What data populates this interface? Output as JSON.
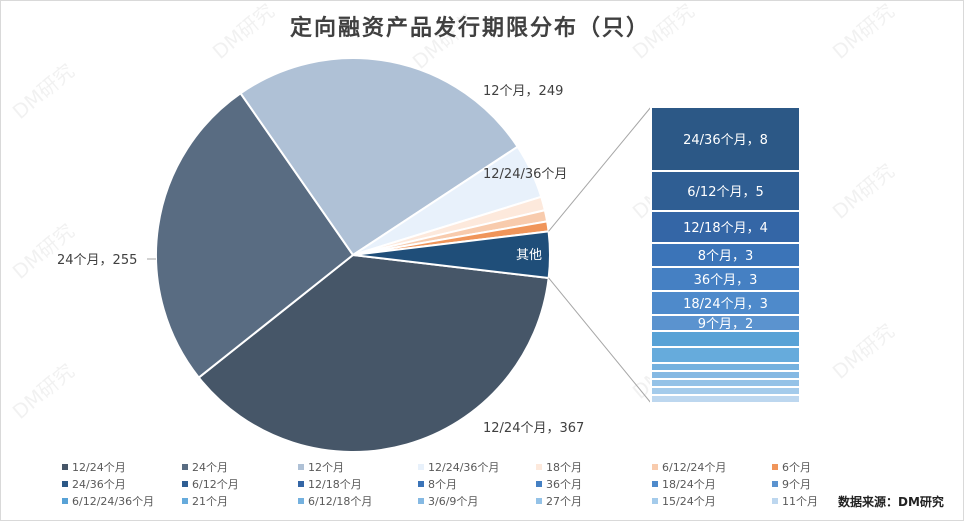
{
  "chart_data": {
    "type": "pie-of-bar",
    "title": "定向融资产品发行期限分布（只）",
    "source": "数据来源：DM研究",
    "watermark": "DM研究",
    "pie": [
      {
        "name": "12/24个月",
        "value": 367,
        "color": "#465668",
        "label": "12/24个月，367"
      },
      {
        "name": "24个月",
        "value": 255,
        "color": "#596c82",
        "label": "24个月，255"
      },
      {
        "name": "12个月",
        "value": 249,
        "color": "#afc1d6",
        "label": "12个月，249"
      },
      {
        "name": "12/24/36个月",
        "value": 44,
        "color": "#e8f1fb",
        "label": "12/24/36个月"
      },
      {
        "name": "18个月",
        "value": 11,
        "color": "#fde9dc",
        "label": ""
      },
      {
        "name": "6/12/24个月",
        "value": 9,
        "color": "#f8cbad",
        "label": ""
      },
      {
        "name": "6个月",
        "value": 8,
        "color": "#f0955a",
        "label": ""
      },
      {
        "name": "其他",
        "value": 37,
        "color": "#1f4e79",
        "label": "其他"
      }
    ],
    "bar": [
      {
        "name": "24/36个月",
        "value": 8,
        "color": "#2c5886",
        "label": "24/36个月，8"
      },
      {
        "name": "6/12个月",
        "value": 5,
        "color": "#2f5e93",
        "label": "6/12个月，5"
      },
      {
        "name": "12/18个月",
        "value": 4,
        "color": "#3466a6",
        "label": "12/18个月，4"
      },
      {
        "name": "8个月",
        "value": 3,
        "color": "#3b74b8",
        "label": "8个月，3"
      },
      {
        "name": "36个月",
        "value": 3,
        "color": "#4580c3",
        "label": "36个月，3"
      },
      {
        "name": "18/24个月",
        "value": 3,
        "color": "#4e8acb",
        "label": "18/24个月，3"
      },
      {
        "name": "9个月",
        "value": 2,
        "color": "#5b93cf",
        "label": "9个月，2"
      },
      {
        "name": "6/12/24/36个月",
        "value": 2,
        "color": "#58a2d6",
        "label": ""
      },
      {
        "name": "21个月",
        "value": 2,
        "color": "#66abdc",
        "label": ""
      },
      {
        "name": "6/12/18个月",
        "value": 1,
        "color": "#74b1df",
        "label": ""
      },
      {
        "name": "3/6/9个月",
        "value": 1,
        "color": "#85b9e3",
        "label": ""
      },
      {
        "name": "27个月",
        "value": 1,
        "color": "#94c2e7",
        "label": ""
      },
      {
        "name": "15/24个月",
        "value": 1,
        "color": "#a4cbeb",
        "label": ""
      },
      {
        "name": "11个月",
        "value": 1,
        "color": "#bdd7ef",
        "label": ""
      }
    ],
    "legend": [
      "12/24个月",
      "24个月",
      "12个月",
      "12/24/36个月",
      "18个月",
      "6/12/24个月",
      "6个月",
      "24/36个月",
      "6/12个月",
      "12/18个月",
      "8个月",
      "36个月",
      "18/24个月",
      "9个月",
      "6/12/24/36个月",
      "21个月",
      "6/12/18个月",
      "3/6/9个月",
      "27个月",
      "15/24个月",
      "11个月"
    ],
    "legend_placement": "bottom"
  }
}
